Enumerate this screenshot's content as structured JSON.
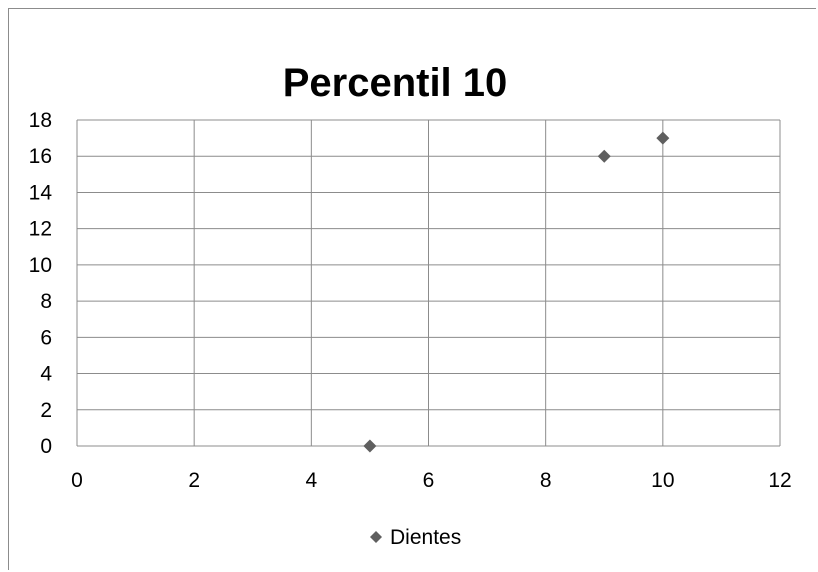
{
  "chart_data": {
    "type": "scatter",
    "title": "Percentil 10",
    "xlabel": "",
    "ylabel": "",
    "xlim": [
      0,
      12
    ],
    "ylim": [
      0,
      18
    ],
    "x_ticks": [
      0,
      2,
      4,
      6,
      8,
      10,
      12
    ],
    "y_ticks": [
      0,
      2,
      4,
      6,
      8,
      10,
      12,
      14,
      16,
      18
    ],
    "x_tick_labels": [
      "0",
      "2",
      "4",
      "6",
      "8",
      "10",
      "12"
    ],
    "y_tick_labels": [
      "0",
      "2",
      "4",
      "6",
      "8",
      "10",
      "12",
      "14",
      "16",
      "18"
    ],
    "grid": true,
    "legend_position": "bottom",
    "marker": "diamond",
    "series": [
      {
        "name": "Dientes",
        "color": "#5f5f5f",
        "points": [
          {
            "x": 5,
            "y": 0
          },
          {
            "x": 9,
            "y": 16
          },
          {
            "x": 10,
            "y": 17
          }
        ]
      }
    ]
  }
}
